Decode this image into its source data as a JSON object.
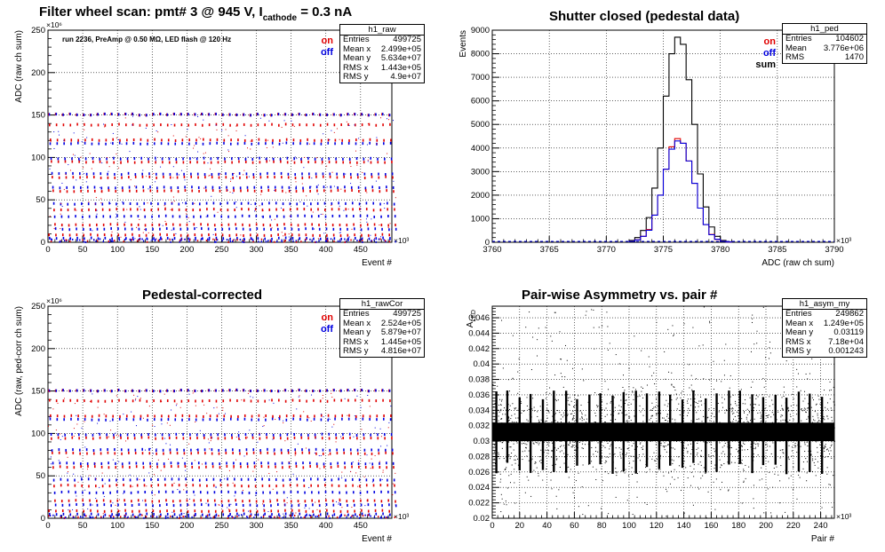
{
  "colors": {
    "on": "#e00000",
    "off": "#0000e0",
    "sum": "#000000",
    "hist": "#000000"
  },
  "panels": {
    "raw": {
      "title_main": "Filter wheel scan: pmt#   3 @   945 V, I",
      "title_sub": "cathode",
      "title_tail": "= 0.3 nA",
      "annotation": "run 2236, PreAmp @ 0.50 MΩ, LED flash @  120 Hz",
      "legend": {
        "on": "on",
        "off": "off"
      },
      "stats": {
        "name": "h1_raw",
        "rows": [
          {
            "label": "Entries",
            "value": "499725"
          },
          {
            "label": "Mean x",
            "value": "2.499e+05"
          },
          {
            "label": "Mean y",
            "value": "5.634e+07"
          },
          {
            "label": "RMS x",
            "value": "1.443e+05"
          },
          {
            "label": "RMS y",
            "value": "4.9e+07"
          }
        ]
      }
    },
    "ped": {
      "title": "Shutter closed (pedestal data)",
      "legend": {
        "on": "on",
        "off": "off",
        "sum": "sum"
      },
      "stats": {
        "name": "h1_ped",
        "rows": [
          {
            "label": "Entries",
            "value": "104602"
          },
          {
            "label": "Mean",
            "value": "3.776e+06"
          },
          {
            "label": "RMS",
            "value": "1470"
          }
        ]
      }
    },
    "cor": {
      "title": "Pedestal-corrected",
      "legend": {
        "on": "on",
        "off": "off"
      },
      "stats": {
        "name": "h1_rawCor",
        "rows": [
          {
            "label": "Entries",
            "value": "499725"
          },
          {
            "label": "Mean x",
            "value": "2.524e+05"
          },
          {
            "label": "Mean y",
            "value": "5.879e+07"
          },
          {
            "label": "RMS x",
            "value": "1.445e+05"
          },
          {
            "label": "RMS y",
            "value": "4.816e+07"
          }
        ]
      }
    },
    "asym": {
      "title": "Pair-wise Asymmetry vs. pair #",
      "stats": {
        "name": "h1_asym_my",
        "rows": [
          {
            "label": "Entries",
            "value": "249862"
          },
          {
            "label": "Mean x",
            "value": "1.249e+05"
          },
          {
            "label": "Mean y",
            "value": "0.03119"
          },
          {
            "label": "RMS x",
            "value": "7.18e+04"
          },
          {
            "label": "RMS y",
            "value": "0.001243"
          }
        ]
      }
    }
  },
  "chart_data": [
    {
      "id": "raw",
      "type": "scatter",
      "xlabel": "Event #",
      "ylabel": "ADC (raw ch sum)",
      "x_multiplier": "×10³",
      "y_multiplier": "×10⁶",
      "xlim": [
        0,
        495
      ],
      "ylim": [
        0,
        250
      ],
      "xticks": [
        0,
        50,
        100,
        150,
        200,
        250,
        300,
        350,
        400,
        450
      ],
      "yticks": [
        0,
        50,
        100,
        150,
        200,
        250
      ],
      "grid": true,
      "series": [
        {
          "name": "on",
          "color": "#e00000"
        },
        {
          "name": "off",
          "color": "#0000e0"
        }
      ],
      "levels": [
        {
          "on": 150,
          "off": 150
        },
        {
          "on": 138,
          "off": 116
        },
        {
          "on": 120,
          "off": 98
        },
        {
          "on": 94,
          "off": 80
        },
        {
          "on": 76,
          "off": 64
        },
        {
          "on": 60,
          "off": 45
        },
        {
          "on": 38,
          "off": 30
        },
        {
          "on": 20,
          "off": 15
        },
        {
          "on": 8,
          "off": 4
        }
      ],
      "step_period": 10
    },
    {
      "id": "ped",
      "type": "bar",
      "xlabel": "ADC (raw ch sum)",
      "ylabel": "Events",
      "x_multiplier": "×10³",
      "xlim": [
        3760,
        3790
      ],
      "ylim": [
        0,
        9000
      ],
      "xticks": [
        3760,
        3765,
        3770,
        3775,
        3780,
        3785,
        3790
      ],
      "yticks": [
        0,
        1000,
        2000,
        3000,
        4000,
        5000,
        6000,
        7000,
        8000,
        9000
      ],
      "grid": true,
      "series": [
        {
          "name": "sum",
          "color": "#000000",
          "bins": [
            3772,
            3772.5,
            3773,
            3773.5,
            3774,
            3774.5,
            3775,
            3775.5,
            3776,
            3776.5,
            3777,
            3777.5,
            3778,
            3778.5,
            3779,
            3779.5,
            3780,
            3780.5
          ],
          "values": [
            80,
            200,
            500,
            1050,
            2300,
            4000,
            6200,
            8000,
            8700,
            8400,
            6900,
            5000,
            2900,
            1500,
            650,
            250,
            80,
            20
          ]
        },
        {
          "name": "on",
          "color": "#e00000",
          "bins": [
            3772,
            3772.5,
            3773,
            3773.5,
            3774,
            3774.5,
            3775,
            3775.5,
            3776,
            3776.5,
            3777,
            3777.5,
            3778,
            3778.5,
            3779,
            3779.5,
            3780,
            3780.5
          ],
          "values": [
            40,
            100,
            250,
            540,
            1150,
            2000,
            3100,
            4050,
            4400,
            4200,
            3450,
            2500,
            1450,
            750,
            330,
            120,
            40,
            10
          ]
        },
        {
          "name": "off",
          "color": "#0000e0",
          "bins": [
            3772,
            3772.5,
            3773,
            3773.5,
            3774,
            3774.5,
            3775,
            3775.5,
            3776,
            3776.5,
            3777,
            3777.5,
            3778,
            3778.5,
            3779,
            3779.5,
            3780,
            3780.5
          ],
          "values": [
            40,
            100,
            250,
            510,
            1150,
            2000,
            3100,
            3950,
            4300,
            4200,
            3450,
            2500,
            1450,
            750,
            320,
            130,
            40,
            10
          ]
        }
      ]
    },
    {
      "id": "cor",
      "type": "scatter",
      "xlabel": "Event #",
      "ylabel": "ADC (raw, ped-corr ch sum)",
      "x_multiplier": "×10³",
      "y_multiplier": "×10⁶",
      "xlim": [
        0,
        495
      ],
      "ylim": [
        0,
        250
      ],
      "xticks": [
        0,
        50,
        100,
        150,
        200,
        250,
        300,
        350,
        400,
        450
      ],
      "yticks": [
        0,
        50,
        100,
        150,
        200,
        250
      ],
      "grid": true,
      "series": [
        {
          "name": "on",
          "color": "#e00000"
        },
        {
          "name": "off",
          "color": "#0000e0"
        }
      ],
      "levels": [
        {
          "on": 150,
          "off": 150
        },
        {
          "on": 138,
          "off": 116
        },
        {
          "on": 120,
          "off": 98
        },
        {
          "on": 94,
          "off": 80
        },
        {
          "on": 76,
          "off": 64
        },
        {
          "on": 60,
          "off": 45
        },
        {
          "on": 38,
          "off": 30
        },
        {
          "on": 20,
          "off": 15
        },
        {
          "on": 8,
          "off": 4
        }
      ],
      "step_period": 10
    },
    {
      "id": "asym",
      "type": "scatter",
      "xlabel": "Pair #",
      "ylabel": "A_LED",
      "x_multiplier": "×10³",
      "xlim": [
        0,
        250
      ],
      "ylim": [
        0.02,
        0.0475
      ],
      "xticks": [
        0,
        20,
        40,
        60,
        80,
        100,
        120,
        140,
        160,
        180,
        200,
        220,
        240
      ],
      "yticks": [
        0.02,
        0.022,
        0.024,
        0.026,
        0.028,
        0.03,
        0.032,
        0.034,
        0.036,
        0.038,
        0.04,
        0.042,
        0.044,
        0.046
      ],
      "grid": true,
      "band_center": 0.0312,
      "band_halfwidth": 0.0012,
      "spike_positions": [
        3,
        11,
        20,
        28,
        37,
        45,
        54,
        62,
        71,
        79,
        88,
        96,
        105,
        113,
        122,
        130,
        139,
        147,
        156,
        164,
        173,
        181,
        190,
        198,
        207,
        215,
        224,
        232,
        241
      ]
    }
  ]
}
